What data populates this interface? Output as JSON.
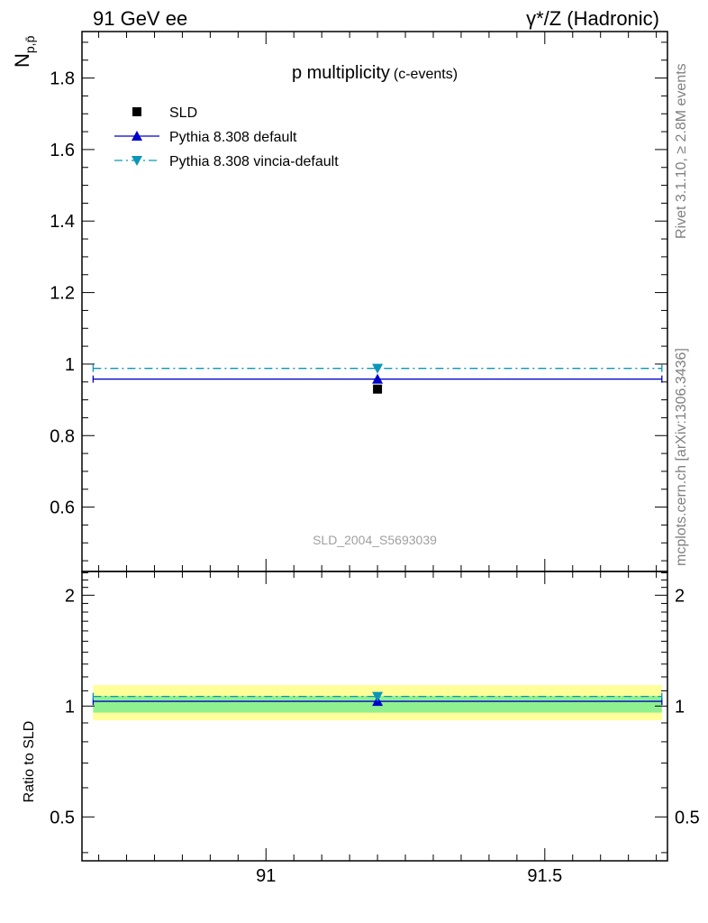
{
  "header": {
    "left": "91 GeV ee",
    "right": "γ*/Z (Hadronic)"
  },
  "side_labels": {
    "rivet": "Rivet 3.1.10, ≥ 2.8M events",
    "mcplots": "mcplots.cern.ch [arXiv:1306.3436]"
  },
  "chart_data": [
    {
      "type": "scatter",
      "title": "p multiplicity",
      "title_suffix": "(c-events)",
      "ylabel": "N",
      "ylabel_sub": "p,p̄",
      "xlim": [
        90.67,
        91.72
      ],
      "ylim": [
        0.42,
        1.93
      ],
      "yticks": [
        0.6,
        0.8,
        1,
        1.2,
        1.4,
        1.6,
        1.8
      ],
      "ytick_labels": [
        "0.6",
        "0.8",
        "1",
        "1.2",
        "1.4",
        "1.6",
        "1.8"
      ],
      "watermark": "SLD_2004_S5693039",
      "legend_position": "top-left",
      "series": [
        {
          "name": "SLD",
          "color": "#000000",
          "marker": "square",
          "x": [
            91.2
          ],
          "y": [
            0.93
          ],
          "yerr": [
            0.005
          ]
        },
        {
          "name": "Pythia 8.308 default",
          "color": "#0000cc",
          "marker": "triangle-up",
          "line": "solid",
          "x": [
            91.2
          ],
          "y": [
            0.958
          ],
          "xrange": [
            90.69,
            91.71
          ]
        },
        {
          "name": "Pythia 8.308 vincia-default",
          "color": "#0a96b8",
          "marker": "triangle-down",
          "line": "dashdot",
          "x": [
            91.2
          ],
          "y": [
            0.988
          ],
          "xrange": [
            90.69,
            91.71
          ]
        }
      ]
    },
    {
      "type": "scatter",
      "ylabel": "Ratio to SLD",
      "log_y": true,
      "xlim": [
        90.67,
        91.72
      ],
      "ylim": [
        0.38,
        2.32
      ],
      "yticks": [
        0.5,
        1,
        2
      ],
      "ytick_labels": [
        "0.5",
        "1",
        "2"
      ],
      "xticks": [
        91,
        91.5
      ],
      "xtick_labels": [
        "91",
        "91.5"
      ],
      "bands": [
        {
          "color": "#ffff99",
          "range": [
            0.915,
            1.14
          ]
        },
        {
          "color": "#90f090",
          "range": [
            0.96,
            1.065
          ]
        }
      ],
      "series": [
        {
          "name": "Pythia 8.308 default",
          "color": "#0000cc",
          "marker": "triangle-up",
          "line": "solid",
          "x": [
            91.2
          ],
          "y": [
            1.03
          ]
        },
        {
          "name": "Pythia 8.308 vincia-default",
          "color": "#0a96b8",
          "marker": "triangle-down",
          "line": "dashdot",
          "x": [
            91.2
          ],
          "y": [
            1.062
          ]
        }
      ]
    }
  ]
}
